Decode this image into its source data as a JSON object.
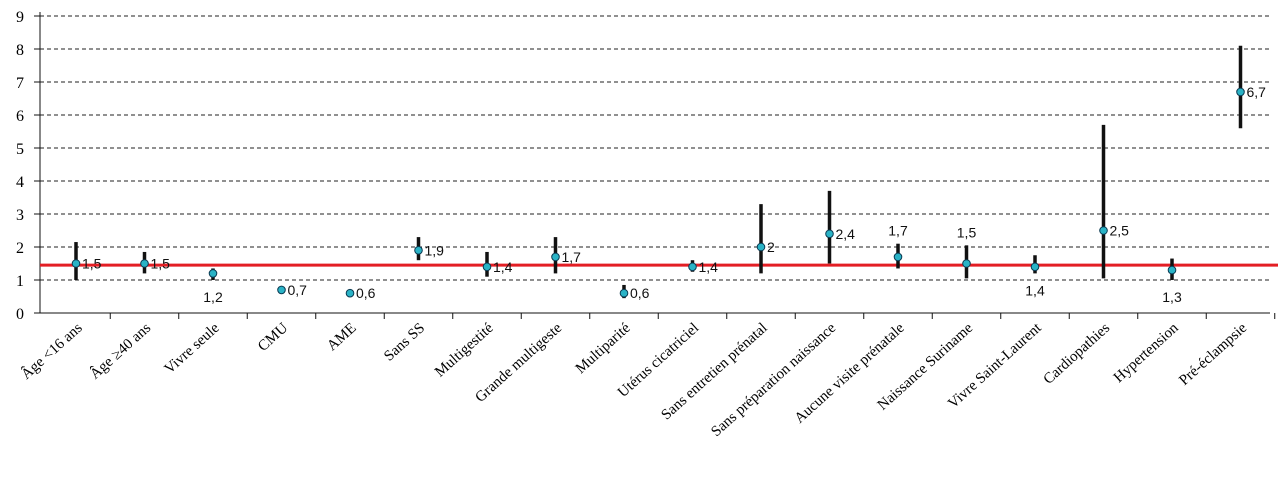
{
  "chart_data": {
    "type": "scatter",
    "title": "",
    "xlabel": "",
    "ylabel": "",
    "ylim": [
      0,
      9
    ],
    "yticks": [
      "0",
      "1",
      "2",
      "3",
      "4",
      "5",
      "6",
      "7",
      "8",
      "9"
    ],
    "grid": "horizontal-dashed",
    "reference_line": {
      "value": 1.45,
      "color": "#e31e24"
    },
    "colors": {
      "point": "#2ab3c6",
      "point_stroke": "#0a3a52",
      "interval": "#111111",
      "grid": "#222222"
    },
    "categories": [
      "Âge <16 ans",
      "Âge ≥40 ans",
      "Vivre seule",
      "CMU",
      "AME",
      "Sans SS",
      "Multigestité",
      "Grande multigeste",
      "Multiparité",
      "Utérus cicatriciel",
      "Sans entretien prénatal",
      "Sans préparation naissance",
      "Aucune visite prénatale",
      "Naissance Suriname",
      "Vivre Saint-Laurent",
      "Cardiopathies",
      "Hypertension",
      "Pré-éclampsie"
    ],
    "series": [
      {
        "values": [
          1.5,
          1.5,
          1.2,
          0.7,
          0.6,
          1.9,
          1.4,
          1.7,
          0.6,
          1.4,
          2,
          2.4,
          1.7,
          1.5,
          1.4,
          2.5,
          1.3,
          6.7
        ],
        "lower": [
          1.0,
          1.2,
          1.0,
          0.7,
          0.6,
          1.6,
          1.1,
          1.2,
          0.45,
          1.25,
          1.2,
          1.5,
          1.35,
          1.05,
          1.2,
          1.05,
          1.0,
          5.6
        ],
        "upper": [
          2.15,
          1.85,
          1.35,
          0.7,
          0.6,
          2.3,
          1.85,
          2.3,
          0.85,
          1.6,
          3.3,
          3.7,
          2.1,
          2.05,
          1.75,
          5.7,
          1.65,
          8.1
        ],
        "labels": [
          "1,5",
          "1,5",
          "1,2",
          "0,7",
          "0,6",
          "1,9",
          "1,4",
          "1,7",
          "0,6",
          "1,4",
          "2",
          "2,4",
          "1,7",
          "1,5",
          "1,4",
          "2,5",
          "1,3",
          "6,7"
        ]
      }
    ]
  }
}
